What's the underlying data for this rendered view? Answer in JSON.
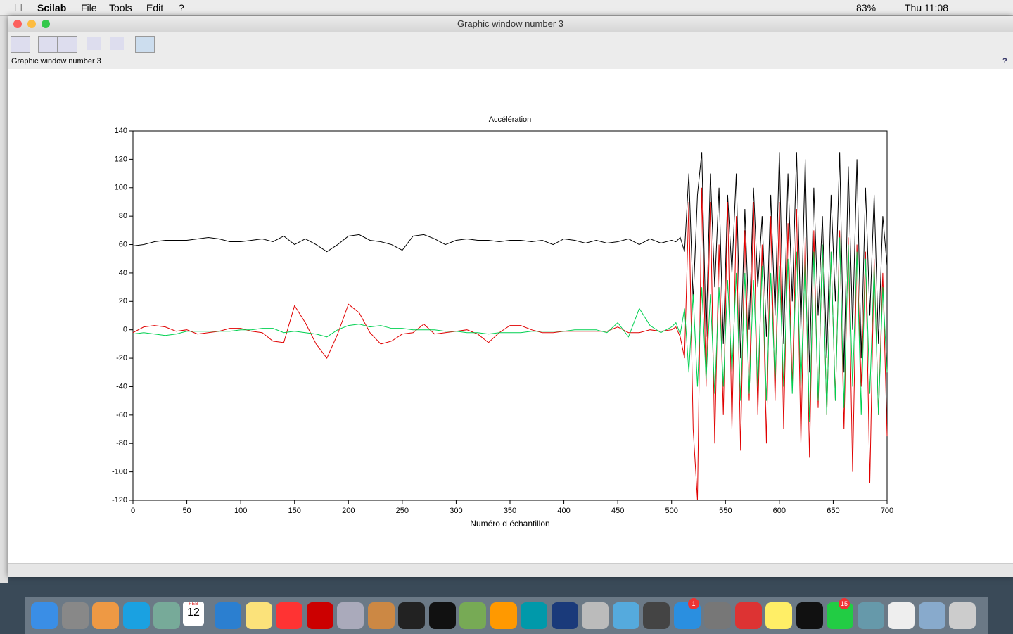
{
  "menu_bar": {
    "app": "Scilab",
    "items": [
      "File",
      "Tools",
      "Edit",
      "?"
    ],
    "battery": "83%",
    "clock": "Thu 11:08"
  },
  "window": {
    "title": "Graphic window number 3",
    "label": "Graphic window number 3",
    "help": "?"
  },
  "dock": {
    "calendar_month": "FEB",
    "calendar_day": "12",
    "badges": [
      "1",
      "15"
    ]
  },
  "chart_data": {
    "type": "line",
    "title": "Accélération",
    "x_label": "Numéro d échantillon",
    "x": [
      0,
      10,
      20,
      30,
      40,
      50,
      60,
      70,
      80,
      90,
      100,
      110,
      120,
      130,
      140,
      150,
      160,
      170,
      180,
      190,
      200,
      210,
      220,
      230,
      240,
      250,
      260,
      270,
      280,
      290,
      300,
      310,
      320,
      330,
      340,
      350,
      360,
      370,
      380,
      390,
      400,
      410,
      420,
      430,
      440,
      450,
      460,
      470,
      480,
      490,
      500,
      504,
      508,
      512,
      516,
      520,
      524,
      528,
      532,
      536,
      540,
      544,
      548,
      552,
      556,
      560,
      564,
      568,
      572,
      576,
      580,
      584,
      588,
      592,
      596,
      600,
      604,
      608,
      612,
      616,
      620,
      624,
      628,
      632,
      636,
      640,
      644,
      648,
      652,
      656,
      660,
      664,
      668,
      672,
      676,
      680,
      684,
      688,
      692,
      696,
      700
    ],
    "series": [
      {
        "color": "#000000",
        "values": [
          59,
          60,
          62,
          63,
          63,
          63,
          64,
          65,
          64,
          62,
          62,
          63,
          64,
          62,
          66,
          60,
          64,
          60,
          55,
          60,
          66,
          67,
          63,
          62,
          60,
          56,
          66,
          67,
          64,
          60,
          63,
          64,
          63,
          63,
          62,
          63,
          63,
          62,
          63,
          60,
          64,
          63,
          61,
          63,
          61,
          62,
          64,
          60,
          64,
          61,
          63,
          62,
          65,
          55,
          110,
          20,
          95,
          125,
          -5,
          110,
          30,
          100,
          -10,
          95,
          40,
          110,
          -20,
          85,
          0,
          100,
          30,
          80,
          -5,
          95,
          10,
          125,
          -10,
          110,
          20,
          125,
          0,
          120,
          -30,
          100,
          10,
          80,
          -20,
          95,
          20,
          125,
          -30,
          115,
          0,
          120,
          -20,
          100,
          10,
          95,
          -10,
          80,
          45
        ]
      },
      {
        "color": "#e00000",
        "values": [
          -2,
          2,
          3,
          2,
          -1,
          0,
          -3,
          -2,
          -1,
          1,
          1,
          -1,
          -2,
          -8,
          -9,
          17,
          5,
          -10,
          -20,
          -3,
          18,
          12,
          -2,
          -10,
          -8,
          -3,
          -2,
          4,
          -3,
          -2,
          -1,
          0,
          -3,
          -9,
          -2,
          3,
          3,
          0,
          -2,
          -2,
          -1,
          -1,
          -1,
          -1,
          -1,
          2,
          -2,
          -2,
          0,
          -1,
          0,
          2,
          -5,
          -20,
          90,
          -70,
          -120,
          100,
          -40,
          90,
          -80,
          60,
          -60,
          90,
          -70,
          80,
          -85,
          70,
          -50,
          90,
          -60,
          60,
          -80,
          80,
          -50,
          90,
          -70,
          75,
          -40,
          85,
          -80,
          65,
          -90,
          70,
          -55,
          60,
          -60,
          55,
          -50,
          70,
          -70,
          65,
          -100,
          60,
          -40,
          55,
          -108,
          50,
          -60,
          40,
          -75
        ]
      },
      {
        "color": "#00d050",
        "values": [
          -3,
          -2,
          -3,
          -4,
          -3,
          -1,
          -1,
          -1,
          -1,
          -1,
          0,
          0,
          1,
          1,
          -2,
          -1,
          -2,
          -3,
          -5,
          0,
          3,
          4,
          2,
          3,
          1,
          1,
          0,
          0,
          0,
          -1,
          -1,
          -2,
          -2,
          -3,
          -2,
          -2,
          -2,
          -1,
          -1,
          -1,
          -1,
          0,
          0,
          0,
          -2,
          5,
          -5,
          15,
          3,
          -2,
          2,
          5,
          -3,
          15,
          -30,
          25,
          -40,
          30,
          -35,
          25,
          -45,
          30,
          -40,
          35,
          -30,
          40,
          -50,
          40,
          -45,
          35,
          -40,
          45,
          -50,
          40,
          -35,
          45,
          -40,
          50,
          -45,
          55,
          -40,
          50,
          -65,
          55,
          -50,
          60,
          -60,
          55,
          -50,
          65,
          -55,
          60,
          -40,
          55,
          -60,
          50,
          -45,
          45,
          -60,
          30,
          -30
        ]
      }
    ],
    "xlim": [
      0,
      700
    ],
    "ylim": [
      -120,
      140
    ],
    "xticks": [
      0,
      50,
      100,
      150,
      200,
      250,
      300,
      350,
      400,
      450,
      500,
      550,
      600,
      650,
      700
    ],
    "yticks": [
      -120,
      -100,
      -80,
      -60,
      -40,
      -20,
      0,
      20,
      40,
      60,
      80,
      100,
      120,
      140
    ]
  }
}
